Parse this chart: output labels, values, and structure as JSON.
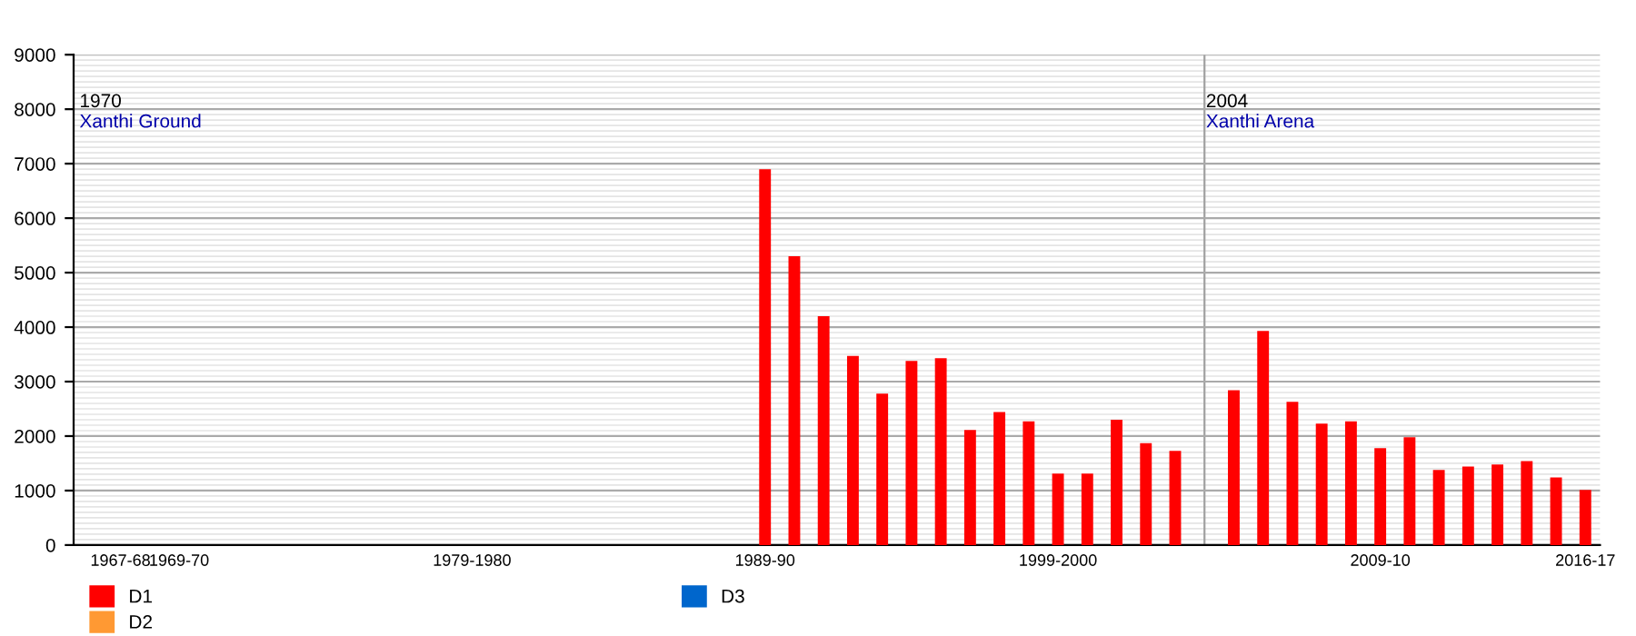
{
  "chart_data": {
    "type": "bar",
    "categories": [
      "1967-68",
      null,
      "1969-70",
      null,
      null,
      null,
      null,
      null,
      null,
      null,
      null,
      null,
      "1979-1980",
      null,
      null,
      null,
      null,
      null,
      null,
      null,
      null,
      null,
      "1989-90",
      null,
      null,
      null,
      null,
      null,
      null,
      null,
      null,
      null,
      "1999-2000",
      null,
      null,
      null,
      null,
      null,
      null,
      null,
      null,
      null,
      null,
      "2009-10",
      null,
      null,
      null,
      null,
      null,
      null,
      "2016-17"
    ],
    "series": [
      {
        "name": "D1",
        "color": "#ff0000",
        "values": [
          null,
          null,
          null,
          null,
          null,
          null,
          null,
          null,
          null,
          null,
          null,
          null,
          null,
          null,
          null,
          null,
          null,
          null,
          null,
          null,
          null,
          null,
          6900,
          5300,
          4200,
          3470,
          2780,
          3380,
          3430,
          2110,
          2440,
          2270,
          1310,
          1310,
          2300,
          1870,
          1730,
          null,
          2840,
          3930,
          2630,
          2230,
          2270,
          1780,
          1980,
          1380,
          1440,
          1480,
          1540,
          1240,
          1010
        ]
      },
      {
        "name": "D2",
        "color": "#ff9933",
        "values": [
          null,
          null,
          null,
          null,
          null,
          null,
          null,
          null,
          null,
          null,
          null,
          null,
          null,
          null,
          null,
          null,
          null,
          null,
          null,
          null,
          null,
          null,
          null,
          null,
          null,
          null,
          null,
          null,
          null,
          null,
          null,
          null,
          null,
          null,
          null,
          null,
          null,
          null,
          null,
          null,
          null,
          null,
          null,
          null,
          null,
          null,
          null,
          null,
          null,
          null,
          null
        ]
      },
      {
        "name": "D3",
        "color": "#0066cc",
        "values": [
          null,
          null,
          null,
          null,
          null,
          null,
          null,
          null,
          null,
          null,
          null,
          null,
          null,
          null,
          null,
          null,
          null,
          null,
          null,
          null,
          null,
          null,
          null,
          null,
          null,
          null,
          null,
          null,
          null,
          null,
          null,
          null,
          null,
          null,
          null,
          null,
          null,
          null,
          null,
          null,
          null,
          null,
          null,
          null,
          null,
          null,
          null,
          null,
          null,
          null,
          null
        ]
      }
    ],
    "ylim": [
      0,
      9000
    ],
    "yticks": [
      0,
      1000,
      2000,
      3000,
      4000,
      5000,
      6000,
      7000,
      8000,
      9000
    ],
    "grid": "y",
    "legend": "bottom left",
    "annotations": [
      "1970",
      "Xanthi Ground",
      "2004",
      "Xanthi Arena"
    ]
  }
}
